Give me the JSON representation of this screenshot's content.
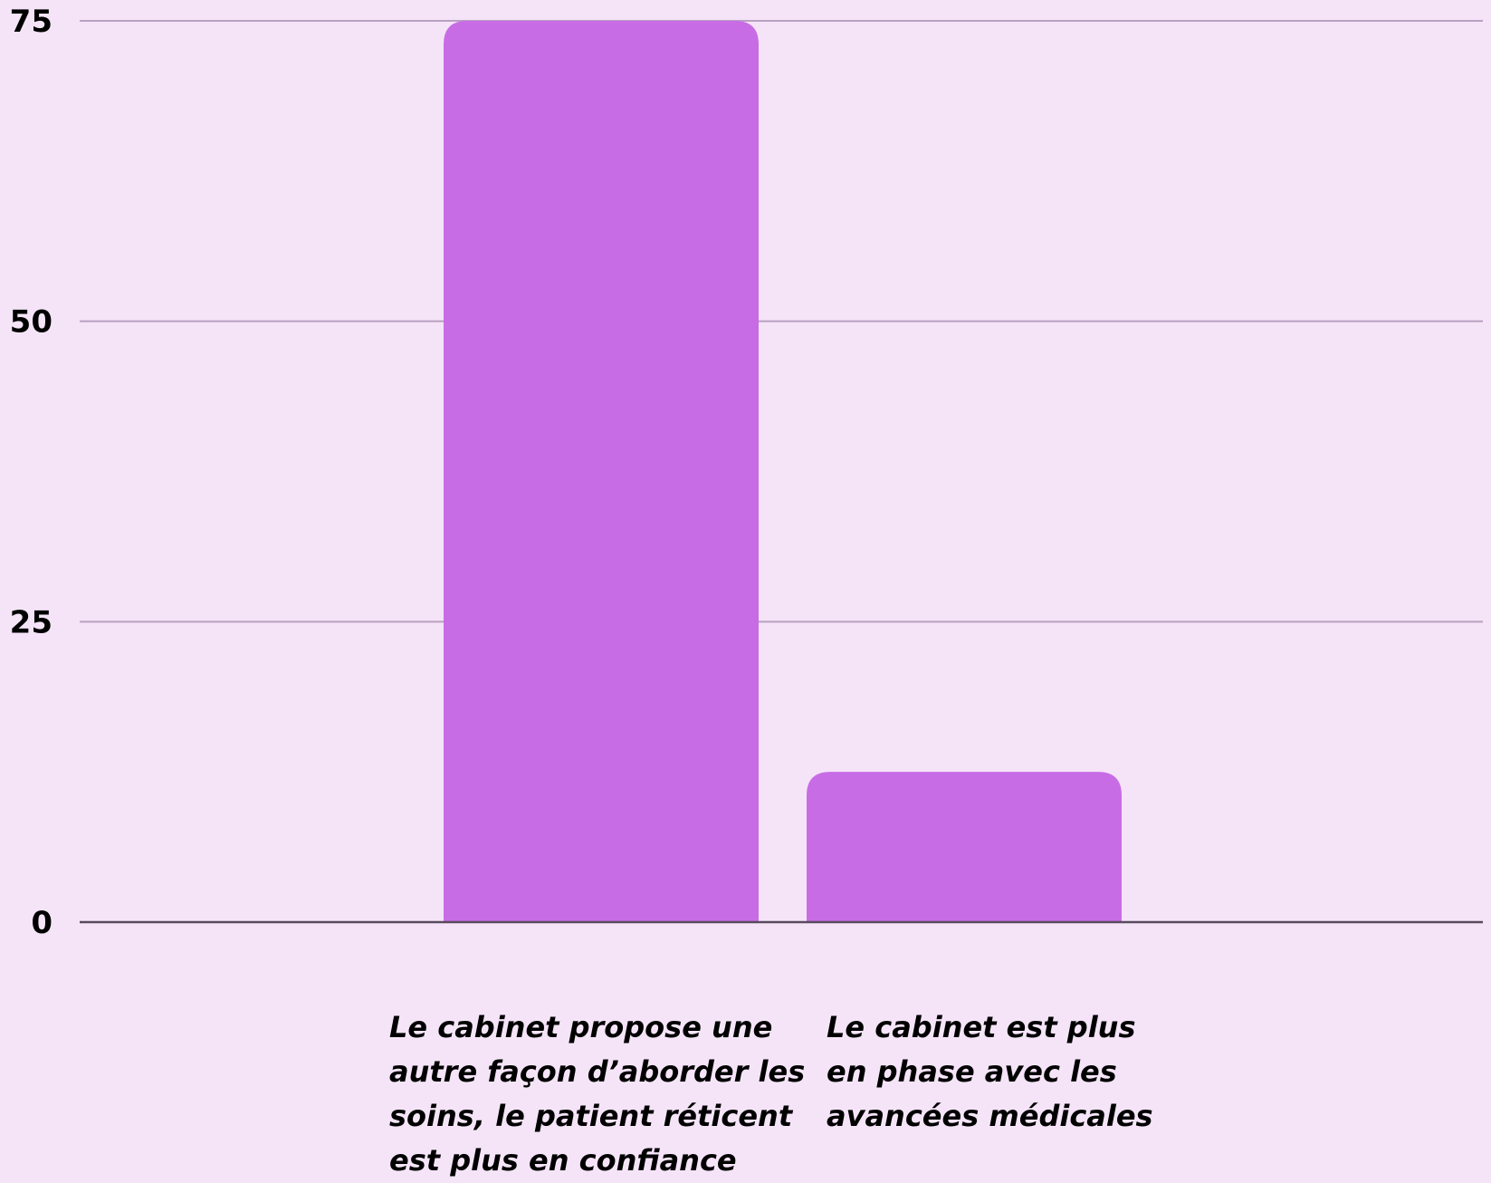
{
  "colors": {
    "background": "#f5e4f8",
    "bar": "#c86ce6",
    "gridline": "#b9a1c0",
    "baseline": "#5a4a5e",
    "text": "#000000"
  },
  "chart_data": {
    "type": "bar",
    "categories": [
      "Le cabinet propose une\nautre façon d’aborder les\nsoins, le patient réticent\nest plus en confiance",
      "Le cabinet est plus\nen phase avec les\navancées médicales"
    ],
    "values": [
      75,
      12.5
    ],
    "title": "",
    "xlabel": "",
    "ylabel": "",
    "ylim": [
      0,
      75
    ],
    "yticks": [
      0,
      25,
      50,
      75
    ],
    "grid": true,
    "legend": "none"
  }
}
